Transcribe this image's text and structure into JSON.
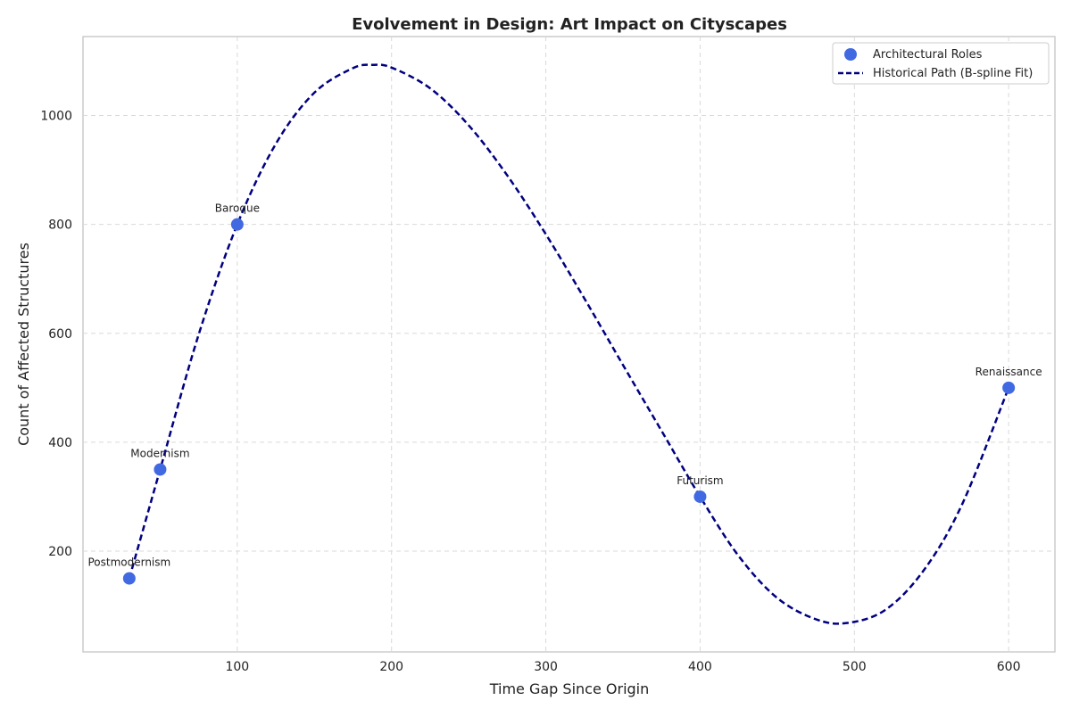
{
  "chart_data": {
    "type": "scatter",
    "title": "Evolvement in Design: Art Impact on Cityscapes",
    "xlabel": "Time Gap Since Origin",
    "ylabel": "Count of Affected Structures",
    "xlim": [
      0,
      630
    ],
    "ylim": [
      15,
      1145
    ],
    "xticks": [
      100,
      200,
      300,
      400,
      500,
      600
    ],
    "yticks": [
      200,
      400,
      600,
      800,
      1000
    ],
    "grid": true,
    "legend_position": "top-right",
    "series": [
      {
        "name": "Architectural Roles",
        "kind": "scatter",
        "color": "#4169e1",
        "points": [
          {
            "x": 30,
            "y": 150,
            "label": "Postmodernism"
          },
          {
            "x": 50,
            "y": 350,
            "label": "Modernism"
          },
          {
            "x": 100,
            "y": 800,
            "label": "Baroque"
          },
          {
            "x": 400,
            "y": 300,
            "label": "Futurism"
          },
          {
            "x": 600,
            "y": 500,
            "label": "Renaissance"
          }
        ]
      },
      {
        "name": "Historical Path (B-spline Fit)",
        "kind": "line",
        "style": "dashed",
        "color": "#000080",
        "x": [
          30,
          50,
          75,
          100,
          125,
          150,
          175,
          188,
          200,
          225,
          250,
          275,
          300,
          325,
          350,
          375,
          400,
          425,
          450,
          475,
          495,
          520,
          545,
          570,
          600
        ],
        "y": [
          150,
          350,
          598,
          800,
          948,
          1042,
          1087,
          1093,
          1088,
          1050,
          982,
          890,
          782,
          664,
          542,
          421,
          300,
          191,
          114,
          75,
          68,
          92,
          165,
          287,
          500
        ]
      }
    ]
  }
}
